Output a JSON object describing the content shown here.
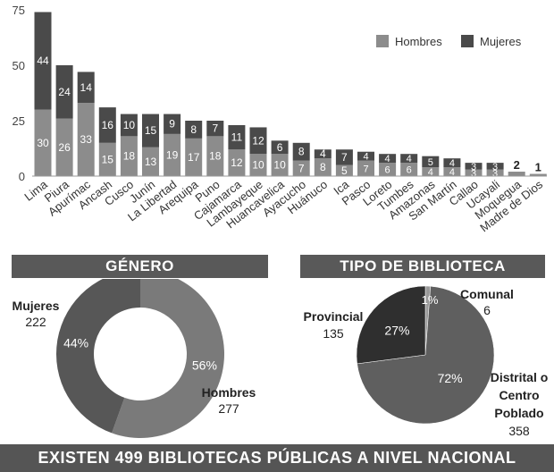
{
  "chart_data": [
    {
      "type": "bar",
      "stacked": true,
      "categories": [
        "Lima",
        "Piura",
        "Apurímac",
        "Ancash",
        "Cusco",
        "Junín",
        "La Libertad",
        "Arequipa",
        "Puno",
        "Cajamarca",
        "Lambayeque",
        "Huancavelica",
        "Ayacucho",
        "Huánuco",
        "Ica",
        "Pasco",
        "Loreto",
        "Tumbes",
        "Amazonas",
        "San Martín",
        "Callao",
        "Ucayali",
        "Moquegua",
        "Madre de Dios"
      ],
      "series": [
        {
          "name": "Hombres",
          "values": [
            30,
            26,
            33,
            15,
            18,
            13,
            19,
            17,
            18,
            12,
            10,
            10,
            7,
            8,
            5,
            7,
            6,
            6,
            4,
            4,
            3,
            3,
            2,
            1
          ]
        },
        {
          "name": "Mujeres",
          "values": [
            44,
            24,
            14,
            16,
            10,
            15,
            9,
            8,
            7,
            11,
            12,
            6,
            8,
            4,
            7,
            4,
            4,
            4,
            5,
            4,
            3,
            3,
            null,
            null
          ]
        }
      ],
      "totals_labels": {
        "Moquegua": "2",
        "Madre de Dios": "1"
      },
      "yticks": [
        0,
        25,
        50,
        75
      ],
      "ylim": [
        0,
        75
      ],
      "legend": "top-right",
      "colors": {
        "Hombres": "#8c8c8c",
        "Mujeres": "#4a4a4a"
      }
    },
    {
      "type": "pie",
      "donut": true,
      "title": "GÉNERO",
      "slices": [
        {
          "label": "Hombres",
          "value": 277,
          "percent": "56%",
          "color": "#7a7a7a"
        },
        {
          "label": "Mujeres",
          "value": 222,
          "percent": "44%",
          "color": "#575757"
        }
      ]
    },
    {
      "type": "pie",
      "title": "TIPO DE BIBLIOTECA",
      "slices": [
        {
          "label": "Distrital o Centro Poblado",
          "lines": [
            "Distrital o",
            "Centro",
            "Poblado"
          ],
          "value": 358,
          "percent": "72%",
          "color": "#5f5f5f"
        },
        {
          "label": "Provincial",
          "value": 135,
          "percent": "27%",
          "color": "#2f2f2f"
        },
        {
          "label": "Comunal",
          "value": 6,
          "percent": "1%",
          "color": "#9a9a9a"
        }
      ]
    }
  ],
  "footer": "EXISTEN 499 BIBLIOTECAS PÚBLICAS A NIVEL NACIONAL"
}
